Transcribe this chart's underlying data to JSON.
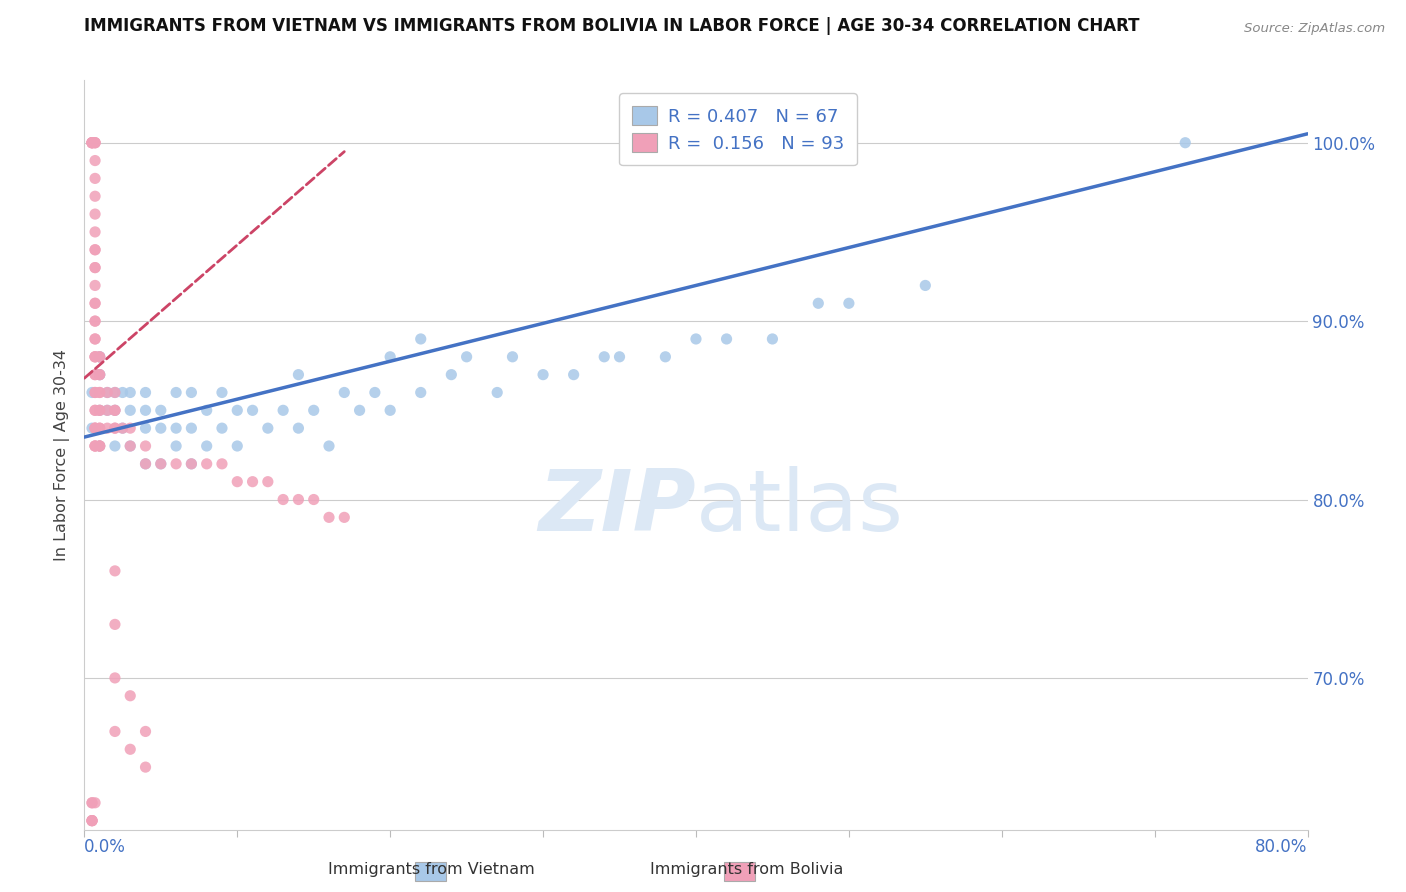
{
  "title": "IMMIGRANTS FROM VIETNAM VS IMMIGRANTS FROM BOLIVIA IN LABOR FORCE | AGE 30-34 CORRELATION CHART",
  "source": "Source: ZipAtlas.com",
  "ylabel": "In Labor Force | Age 30-34",
  "xlim": [
    0.0,
    0.8
  ],
  "ylim": [
    0.615,
    1.035
  ],
  "ytick_positions": [
    0.7,
    0.8,
    0.9,
    1.0
  ],
  "ytick_labels": [
    "70.0%",
    "80.0%",
    "90.0%",
    "100.0%"
  ],
  "legend_vietnam": "R = 0.407   N = 67",
  "legend_bolivia": "R =  0.156   N = 93",
  "legend_label_vietnam": "Immigrants from Vietnam",
  "legend_label_bolivia": "Immigrants from Bolivia",
  "color_vietnam": "#a8c8e8",
  "color_bolivia": "#f0a0b8",
  "color_trendline_vietnam": "#4472c4",
  "color_trendline_bolivia": "#cc4466",
  "watermark_color": "#dce8f5",
  "trendline_vietnam_x0": 0.0,
  "trendline_vietnam_y0": 0.835,
  "trendline_vietnam_x1": 0.8,
  "trendline_vietnam_y1": 1.005,
  "trendline_bolivia_x0": 0.0,
  "trendline_bolivia_y0": 0.868,
  "trendline_bolivia_x1": 0.17,
  "trendline_bolivia_y1": 0.995,
  "vietnam_x": [
    0.005,
    0.005,
    0.01,
    0.01,
    0.01,
    0.01,
    0.01,
    0.01,
    0.015,
    0.015,
    0.02,
    0.02,
    0.02,
    0.025,
    0.025,
    0.03,
    0.03,
    0.03,
    0.04,
    0.04,
    0.04,
    0.04,
    0.05,
    0.05,
    0.05,
    0.06,
    0.06,
    0.06,
    0.07,
    0.07,
    0.07,
    0.08,
    0.08,
    0.09,
    0.09,
    0.1,
    0.1,
    0.11,
    0.12,
    0.13,
    0.14,
    0.14,
    0.15,
    0.16,
    0.17,
    0.18,
    0.19,
    0.2,
    0.2,
    0.22,
    0.22,
    0.24,
    0.25,
    0.27,
    0.28,
    0.3,
    0.32,
    0.34,
    0.35,
    0.38,
    0.4,
    0.42,
    0.45,
    0.48,
    0.5,
    0.55,
    0.72
  ],
  "vietnam_y": [
    0.84,
    0.86,
    0.83,
    0.85,
    0.87,
    0.87,
    0.88,
    0.88,
    0.85,
    0.86,
    0.83,
    0.85,
    0.86,
    0.84,
    0.86,
    0.83,
    0.85,
    0.86,
    0.82,
    0.84,
    0.85,
    0.86,
    0.82,
    0.84,
    0.85,
    0.83,
    0.84,
    0.86,
    0.82,
    0.84,
    0.86,
    0.83,
    0.85,
    0.84,
    0.86,
    0.83,
    0.85,
    0.85,
    0.84,
    0.85,
    0.84,
    0.87,
    0.85,
    0.83,
    0.86,
    0.85,
    0.86,
    0.85,
    0.88,
    0.86,
    0.89,
    0.87,
    0.88,
    0.86,
    0.88,
    0.87,
    0.87,
    0.88,
    0.88,
    0.88,
    0.89,
    0.89,
    0.89,
    0.91,
    0.91,
    0.92,
    1.0
  ],
  "bolivia_x": [
    0.005,
    0.005,
    0.005,
    0.005,
    0.005,
    0.007,
    0.007,
    0.007,
    0.007,
    0.007,
    0.007,
    0.007,
    0.007,
    0.007,
    0.007,
    0.007,
    0.007,
    0.007,
    0.007,
    0.007,
    0.007,
    0.007,
    0.007,
    0.007,
    0.007,
    0.007,
    0.007,
    0.007,
    0.007,
    0.007,
    0.007,
    0.007,
    0.007,
    0.007,
    0.007,
    0.007,
    0.007,
    0.007,
    0.007,
    0.01,
    0.01,
    0.01,
    0.01,
    0.01,
    0.01,
    0.01,
    0.01,
    0.01,
    0.01,
    0.01,
    0.01,
    0.01,
    0.015,
    0.015,
    0.015,
    0.02,
    0.02,
    0.02,
    0.02,
    0.02,
    0.025,
    0.03,
    0.03,
    0.04,
    0.04,
    0.05,
    0.06,
    0.07,
    0.08,
    0.09,
    0.1,
    0.11,
    0.12,
    0.13,
    0.14,
    0.15,
    0.16,
    0.17,
    0.02,
    0.02,
    0.02,
    0.02,
    0.03,
    0.03,
    0.04,
    0.04,
    0.005,
    0.005,
    0.005,
    0.005,
    0.005,
    0.005,
    0.007
  ],
  "bolivia_y": [
    1.0,
    1.0,
    1.0,
    1.0,
    1.0,
    1.0,
    1.0,
    1.0,
    0.99,
    0.98,
    0.97,
    0.96,
    0.95,
    0.94,
    0.94,
    0.93,
    0.93,
    0.92,
    0.91,
    0.91,
    0.9,
    0.9,
    0.89,
    0.89,
    0.88,
    0.88,
    0.88,
    0.87,
    0.87,
    0.86,
    0.86,
    0.85,
    0.85,
    0.84,
    0.84,
    0.84,
    0.83,
    0.83,
    0.83,
    0.88,
    0.88,
    0.87,
    0.87,
    0.86,
    0.86,
    0.85,
    0.85,
    0.84,
    0.84,
    0.83,
    0.83,
    0.83,
    0.86,
    0.85,
    0.84,
    0.86,
    0.85,
    0.85,
    0.84,
    0.84,
    0.84,
    0.84,
    0.83,
    0.83,
    0.82,
    0.82,
    0.82,
    0.82,
    0.82,
    0.82,
    0.81,
    0.81,
    0.81,
    0.8,
    0.8,
    0.8,
    0.79,
    0.79,
    0.76,
    0.73,
    0.7,
    0.67,
    0.69,
    0.66,
    0.67,
    0.65,
    0.63,
    0.62,
    0.62,
    0.63,
    0.62,
    0.62,
    0.63
  ]
}
